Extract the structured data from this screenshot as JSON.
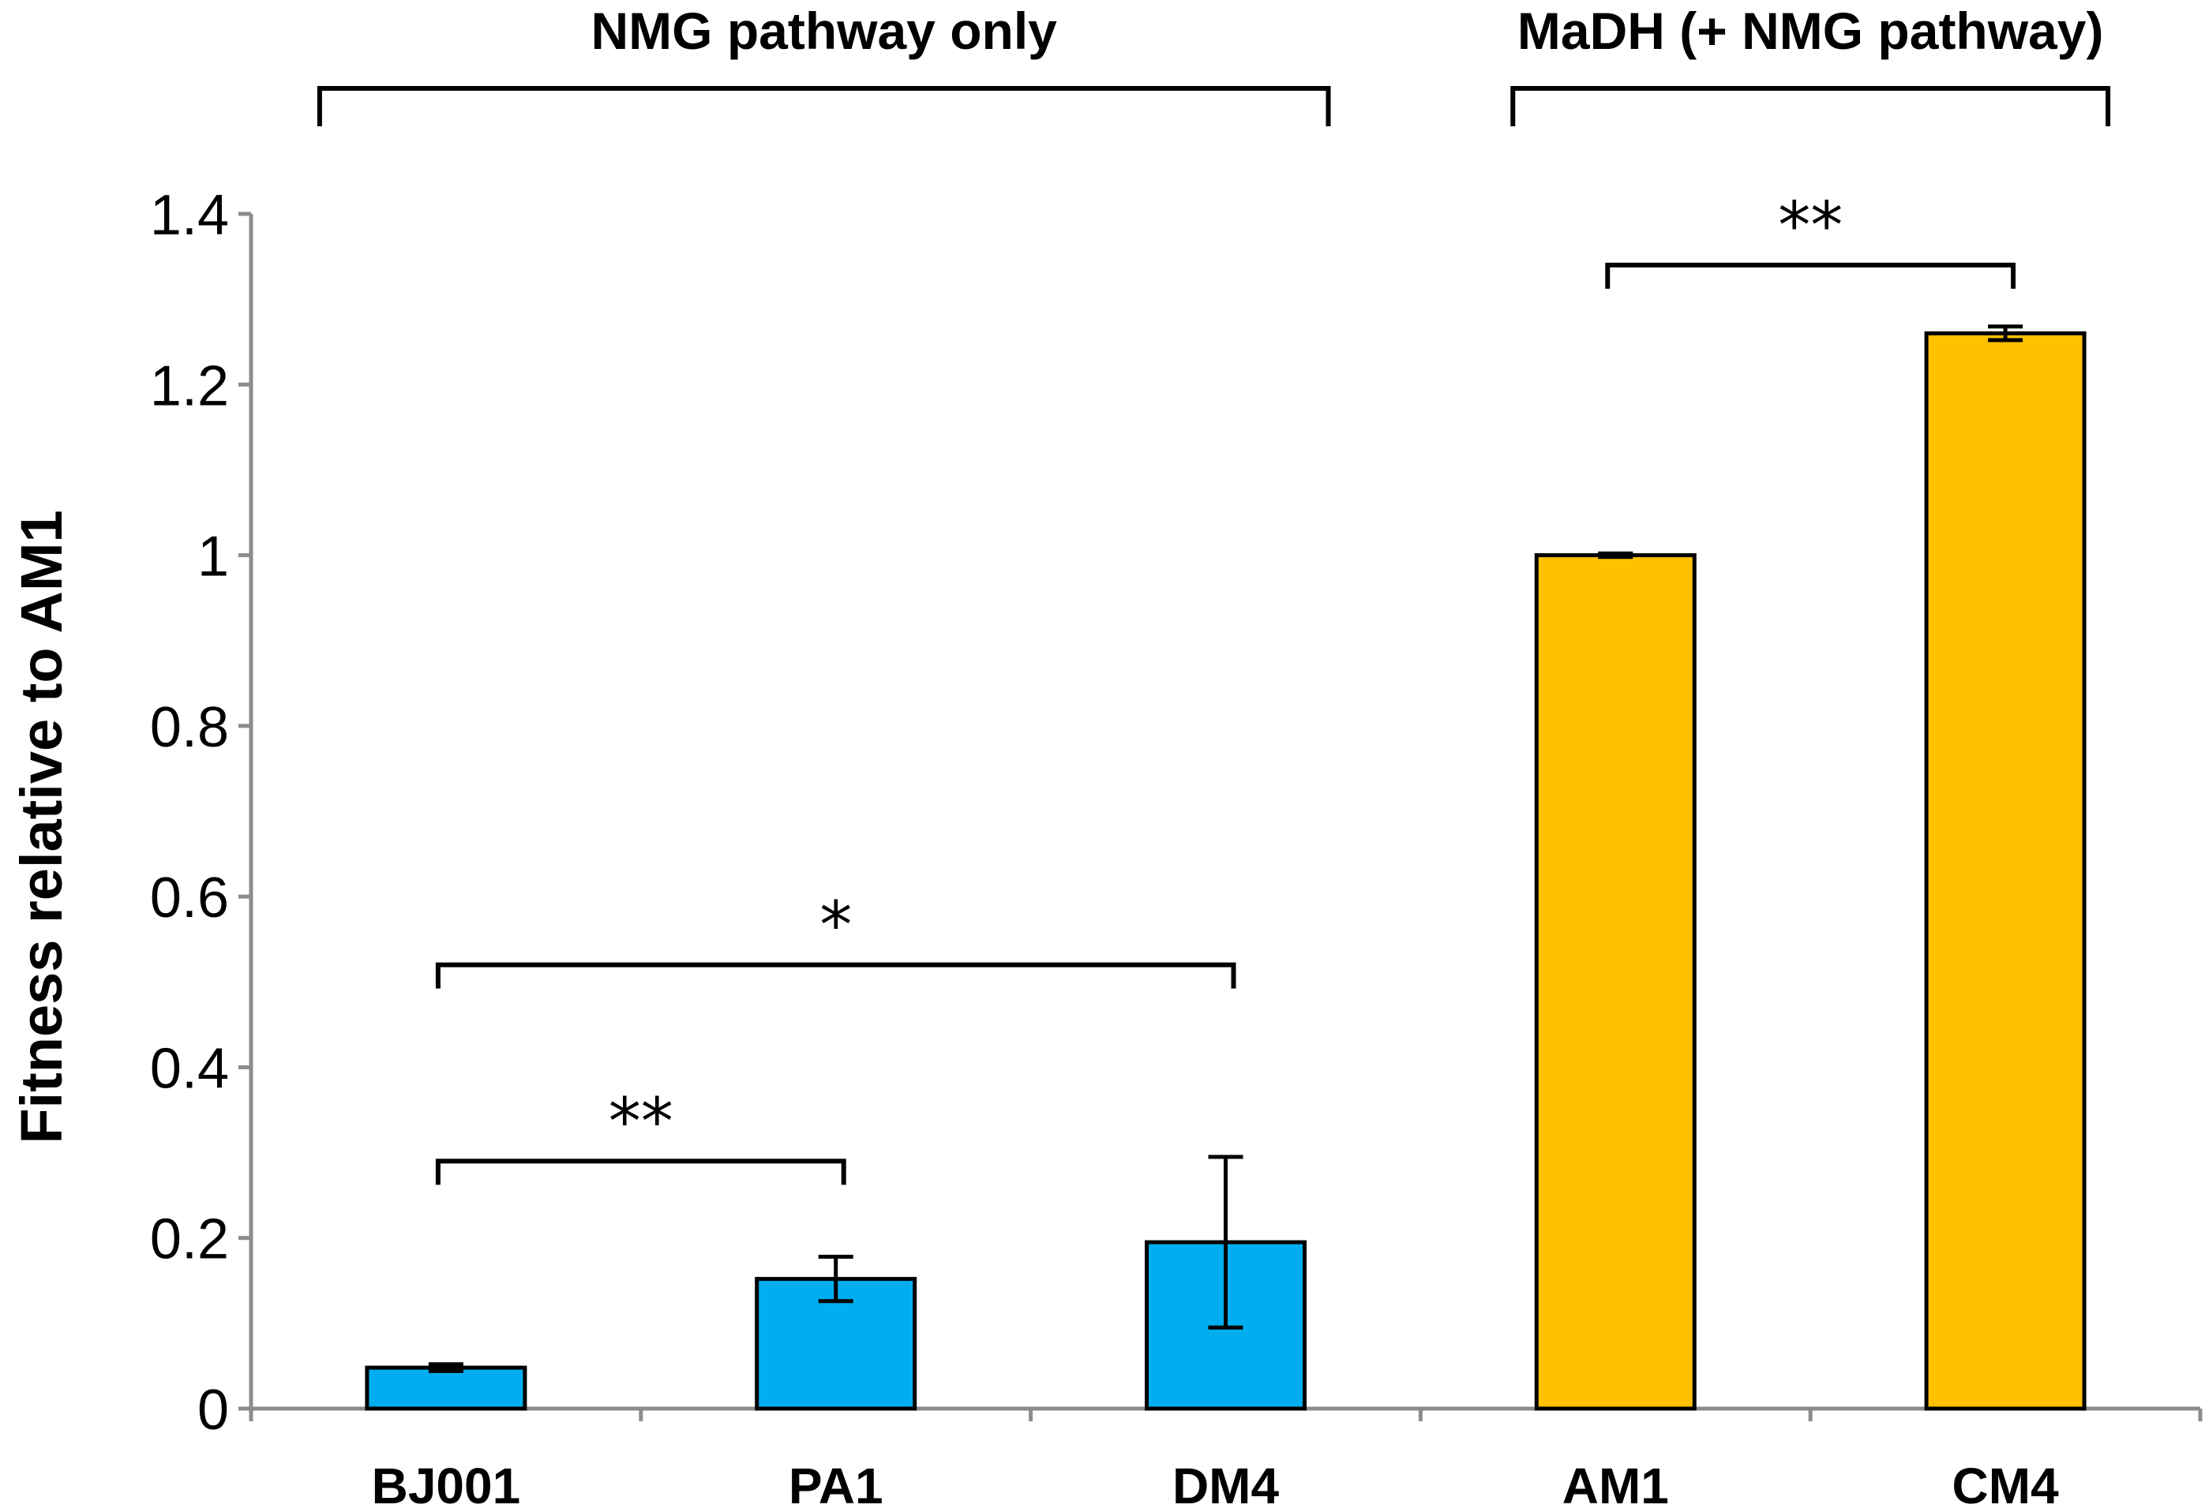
{
  "chart_data": {
    "type": "bar",
    "title": "",
    "xlabel": "",
    "ylabel": "Fitness relative to AM1",
    "ylim": [
      0,
      1.4
    ],
    "ytick_step": 0.2,
    "yticks": [
      "0",
      "0.2",
      "0.4",
      "0.6",
      "0.8",
      "1",
      "1.2",
      "1.4"
    ],
    "grid": false,
    "categories": [
      "BJ001",
      "PA1",
      "DM4",
      "AM1",
      "CM4"
    ],
    "values": [
      0.048,
      0.152,
      0.195,
      1.0,
      1.26
    ],
    "errors": [
      0.004,
      0.026,
      0.1,
      0.002,
      0.008
    ],
    "colors": [
      "#00AEEF",
      "#00AEEF",
      "#00AEEF",
      "#FFC000",
      "#FFC000"
    ],
    "groups": [
      {
        "label": "NMG pathway only",
        "start": 0,
        "end": 2
      },
      {
        "label": "MaDH (+ NMG pathway)",
        "start": 3,
        "end": 4
      }
    ],
    "significance": [
      {
        "from": 0,
        "to": 1,
        "label": "**",
        "y": 0.29
      },
      {
        "from": 0,
        "to": 2,
        "label": "*",
        "y": 0.52
      },
      {
        "from": 3,
        "to": 4,
        "label": "**",
        "y": 1.34
      }
    ]
  }
}
